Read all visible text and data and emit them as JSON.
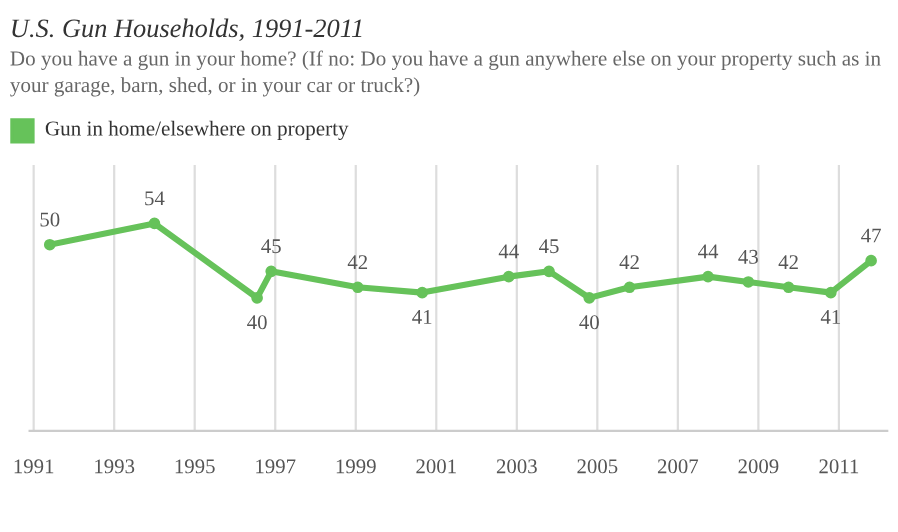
{
  "chart_data": {
    "type": "line",
    "title": "U.S. Gun Households, 1991-2011",
    "subtitle": "Do you have a gun in your home? (If no: Do you have a gun anywhere else on your property such as in your garage, barn, shed, or in your car or truck?)",
    "x": [
      1991.4,
      1994.0,
      1996.55,
      1996.9,
      1999.05,
      2000.65,
      2002.8,
      2003.8,
      2004.8,
      2005.8,
      2007.75,
      2008.75,
      2009.75,
      2010.8,
      2011.8
    ],
    "series": [
      {
        "name": "Gun in home/elsewhere on property",
        "color": "#66c25a",
        "values": [
          50,
          54,
          40,
          45,
          42,
          41,
          44,
          45,
          40,
          42,
          44,
          43,
          42,
          41,
          47
        ]
      }
    ],
    "xlim": [
      1990.9,
      2012.2
    ],
    "xticks": [
      1991,
      1993,
      1995,
      1997,
      1999,
      2001,
      2003,
      2005,
      2007,
      2009,
      2011
    ],
    "ylim": [
      15,
      65
    ],
    "tick_labels": "x",
    "grid": "x",
    "legend": "top left",
    "marker": "circle",
    "line_style": "solid",
    "data_labels": true
  }
}
